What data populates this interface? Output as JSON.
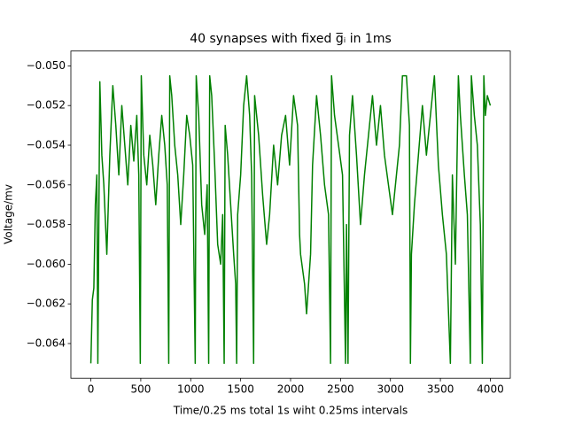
{
  "chart_data": {
    "type": "line",
    "title": "40 synapses with fixed g̅ᵢ in 1ms",
    "x_label": "Time/0.25 ms total 1s wiht 0.25ms intervals",
    "y_label": "Voltage/mv",
    "xlim": [
      -200,
      4200
    ],
    "ylim": [
      -0.06575,
      -0.04925
    ],
    "xticks": [
      0,
      500,
      1000,
      1500,
      2000,
      2500,
      3000,
      3500,
      4000
    ],
    "yticks": [
      {
        "value": -0.064,
        "label": "−0.064"
      },
      {
        "value": -0.062,
        "label": "−0.062"
      },
      {
        "value": -0.06,
        "label": "−0.060"
      },
      {
        "value": -0.058,
        "label": "−0.058"
      },
      {
        "value": -0.056,
        "label": "−0.056"
      },
      {
        "value": -0.054,
        "label": "−0.054"
      },
      {
        "value": -0.052,
        "label": "−0.052"
      },
      {
        "value": -0.05,
        "label": "−0.050"
      }
    ],
    "series": [
      {
        "color": "#008000",
        "x": [
          0,
          15,
          30,
          45,
          60,
          70,
          90,
          110,
          130,
          160,
          190,
          220,
          250,
          280,
          310,
          340,
          370,
          400,
          430,
          460,
          480,
          495,
          505,
          530,
          560,
          590,
          620,
          650,
          680,
          710,
          740,
          765,
          780,
          790,
          810,
          840,
          870,
          900,
          930,
          960,
          990,
          1020,
          1045,
          1055,
          1080,
          1110,
          1140,
          1165,
          1180,
          1190,
          1210,
          1240,
          1270,
          1300,
          1320,
          1335,
          1345,
          1370,
          1400,
          1430,
          1450,
          1460,
          1470,
          1500,
          1530,
          1560,
          1590,
          1610,
          1630,
          1640,
          1680,
          1720,
          1760,
          1790,
          1830,
          1870,
          1910,
          1950,
          1990,
          2030,
          2070,
          2090,
          2100,
          2140,
          2160,
          2200,
          2220,
          2260,
          2300,
          2340,
          2380,
          2400,
          2410,
          2440,
          2480,
          2520,
          2550,
          2560,
          2575,
          2590,
          2620,
          2660,
          2700,
          2740,
          2780,
          2820,
          2860,
          2900,
          2940,
          2980,
          3020,
          3060,
          3090,
          3120,
          3160,
          3190,
          3200,
          3210,
          3240,
          3280,
          3320,
          3360,
          3400,
          3440,
          3480,
          3520,
          3560,
          3600,
          3620,
          3650,
          3680,
          3700,
          3740,
          3770,
          3800,
          3810,
          3840,
          3870,
          3900,
          3920,
          3935,
          3950,
          3970,
          4000
        ],
        "values": [
          -0.065,
          -0.0618,
          -0.0612,
          -0.057,
          -0.0555,
          -0.065,
          -0.0508,
          -0.0545,
          -0.056,
          -0.0595,
          -0.0545,
          -0.051,
          -0.053,
          -0.0555,
          -0.052,
          -0.054,
          -0.056,
          -0.053,
          -0.0548,
          -0.0525,
          -0.0555,
          -0.065,
          -0.0505,
          -0.0545,
          -0.056,
          -0.0535,
          -0.055,
          -0.057,
          -0.0545,
          -0.0525,
          -0.054,
          -0.056,
          -0.065,
          -0.0505,
          -0.0515,
          -0.054,
          -0.0555,
          -0.058,
          -0.0555,
          -0.0525,
          -0.0535,
          -0.055,
          -0.065,
          -0.0505,
          -0.0525,
          -0.057,
          -0.0585,
          -0.056,
          -0.065,
          -0.0505,
          -0.0515,
          -0.055,
          -0.059,
          -0.06,
          -0.0575,
          -0.065,
          -0.053,
          -0.0545,
          -0.057,
          -0.0595,
          -0.061,
          -0.065,
          -0.0575,
          -0.0555,
          -0.052,
          -0.0505,
          -0.0525,
          -0.0555,
          -0.065,
          -0.0515,
          -0.0535,
          -0.0565,
          -0.059,
          -0.0575,
          -0.054,
          -0.056,
          -0.0535,
          -0.0525,
          -0.055,
          -0.0515,
          -0.053,
          -0.0585,
          -0.0595,
          -0.061,
          -0.0625,
          -0.0595,
          -0.055,
          -0.0515,
          -0.0535,
          -0.056,
          -0.0575,
          -0.065,
          -0.0505,
          -0.0525,
          -0.054,
          -0.0555,
          -0.065,
          -0.058,
          -0.065,
          -0.0535,
          -0.0515,
          -0.0545,
          -0.058,
          -0.0555,
          -0.0535,
          -0.0515,
          -0.054,
          -0.052,
          -0.0545,
          -0.056,
          -0.0575,
          -0.0555,
          -0.054,
          -0.0505,
          -0.0505,
          -0.053,
          -0.065,
          -0.0595,
          -0.057,
          -0.0545,
          -0.052,
          -0.0545,
          -0.0525,
          -0.0505,
          -0.055,
          -0.0575,
          -0.0595,
          -0.065,
          -0.0555,
          -0.06,
          -0.0505,
          -0.0525,
          -0.0555,
          -0.0575,
          -0.065,
          -0.0505,
          -0.0525,
          -0.054,
          -0.058,
          -0.065,
          -0.0505,
          -0.0525,
          -0.0515,
          -0.052
        ]
      }
    ]
  }
}
